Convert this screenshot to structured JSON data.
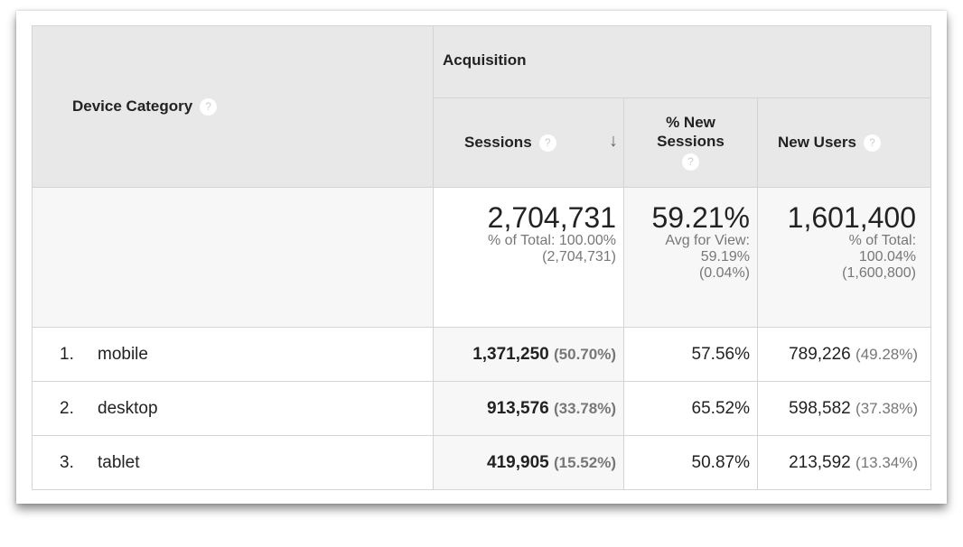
{
  "headers": {
    "device_category": "Device Category",
    "acquisition": "Acquisition",
    "sessions": "Sessions",
    "pct_new_sessions": "% New Sessions",
    "new_users": "New Users",
    "help": "?",
    "sort_icon": "arrow-down"
  },
  "totals": {
    "sessions": "2,704,731",
    "sessions_sub1": "% of Total: 100.00%",
    "sessions_sub2": "(2,704,731)",
    "pct_new": "59.21%",
    "pct_new_sub1": "Avg for View:",
    "pct_new_sub2": "59.19%",
    "pct_new_sub3": "(0.04%)",
    "new_users": "1,601,400",
    "new_users_sub1": "% of Total:",
    "new_users_sub2": "100.04%",
    "new_users_sub3": "(1,600,800)"
  },
  "rows": [
    {
      "index": "1.",
      "device": "mobile",
      "sessions": "1,371,250",
      "sessions_pct": "(50.70%)",
      "pct_new": "57.56%",
      "new_users": "789,226",
      "new_users_pct": "(49.28%)"
    },
    {
      "index": "2.",
      "device": "desktop",
      "sessions": "913,576",
      "sessions_pct": "(33.78%)",
      "pct_new": "65.52%",
      "new_users": "598,582",
      "new_users_pct": "(37.38%)"
    },
    {
      "index": "3.",
      "device": "tablet",
      "sessions": "419,905",
      "sessions_pct": "(15.52%)",
      "pct_new": "50.87%",
      "new_users": "213,592",
      "new_users_pct": "(13.34%)"
    }
  ]
}
